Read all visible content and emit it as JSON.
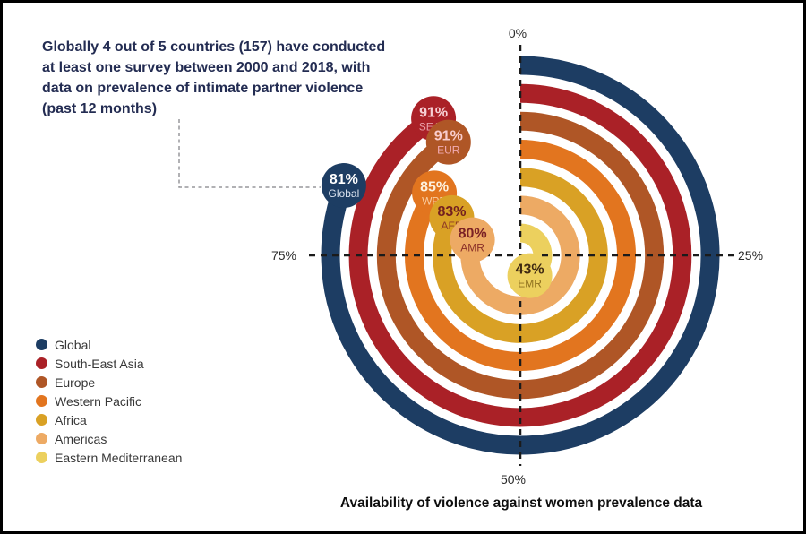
{
  "window": {
    "background": "#ffffff",
    "border_color": "#000000"
  },
  "annotation": {
    "text": "Globally 4 out of 5 countries (157) have conducted at least one survey between 2000 and 2018, with data on prevalence of intimate partner violence (past 12 months)",
    "color": "#232c52"
  },
  "title": {
    "text": "Availability of violence against women prevalence data"
  },
  "chart_data": {
    "type": "radial-bar",
    "title": "Availability of violence against women prevalence data",
    "unit": "%",
    "angular_axis": {
      "range": [
        0,
        100
      ],
      "tick_labels": {
        "top": "0%",
        "right": "25%",
        "bottom": "50%",
        "left": "75%"
      }
    },
    "legend_position": "bottom-left",
    "regions": [
      {
        "name": "Global",
        "code": "Global",
        "value": 81,
        "value_label": "81%",
        "color": "#1d3d63",
        "bubble_value_color": "#ffffff",
        "bubble_code_color": "#dbe3ef"
      },
      {
        "name": "South-East Asia",
        "code": "SEAR",
        "value": 91,
        "value_label": "91%",
        "color": "#aa2127",
        "bubble_value_color": "#f7d2d6",
        "bubble_code_color": "#ea9fa8"
      },
      {
        "name": "Europe",
        "code": "EUR",
        "value": 91,
        "value_label": "91%",
        "color": "#af5626",
        "bubble_value_color": "#f9cdcd",
        "bubble_code_color": "#f2abb3"
      },
      {
        "name": "Western Pacific",
        "code": "WPR",
        "value": 85,
        "value_label": "85%",
        "color": "#e2751f",
        "bubble_value_color": "#fdf0dc",
        "bubble_code_color": "#f8cda2"
      },
      {
        "name": "Africa",
        "code": "AFR",
        "value": 83,
        "value_label": "83%",
        "color": "#d9a125",
        "bubble_value_color": "#73201f",
        "bubble_code_color": "#8f3b26"
      },
      {
        "name": "Americas",
        "code": "AMR",
        "value": 80,
        "value_label": "80%",
        "color": "#edaa64",
        "bubble_value_color": "#7b2125",
        "bubble_code_color": "#8a2f28"
      },
      {
        "name": "Eastern Mediterranean",
        "code": "EMR",
        "value": 43,
        "value_label": "43%",
        "color": "#ecd05e",
        "bubble_value_color": "#3f2a12",
        "bubble_code_color": "#8e711f"
      }
    ]
  }
}
